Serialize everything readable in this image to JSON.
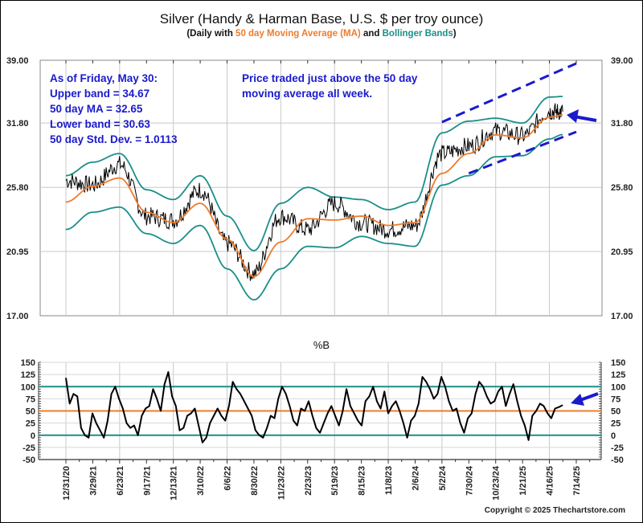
{
  "chart_data": [
    {
      "type": "line",
      "title": "Silver (Handy & Harman Base, U.S. $ per troy ounce)",
      "subtitle": {
        "prefix": "(Daily with ",
        "ma_text": "50 day Moving Average (MA)",
        "middle": " and ",
        "bb_text": "Bollinger Bands",
        "suffix": ")"
      },
      "yscale": "log",
      "ylim": [
        17.0,
        39.0
      ],
      "yticks": [
        "39.00",
        "31.80",
        "25.80",
        "20.95",
        "17.00"
      ],
      "ytick_values": [
        39.0,
        31.8,
        25.8,
        20.95,
        17.0
      ],
      "xlabel": "",
      "ylabel": "",
      "grid": true,
      "colors": {
        "price": "#000000",
        "ma": "#f07b2a",
        "bands": "#1b8f8a",
        "annotation": "#1a1acc"
      },
      "x_dates": [
        "12/31/20",
        "3/29/21",
        "6/23/21",
        "9/17/21",
        "12/13/21",
        "3/10/22",
        "6/6/22",
        "8/30/22",
        "11/23/22",
        "2/23/23",
        "5/19/23",
        "8/15/23",
        "11/8/23",
        "2/6/24",
        "5/2/24",
        "7/30/24",
        "10/23/24",
        "1/21/25",
        "4/16/25",
        "5/30/25"
      ],
      "series": [
        {
          "name": "Price",
          "values": [
            26.4,
            26.0,
            27.8,
            23.5,
            23.2,
            25.6,
            21.5,
            19.5,
            23.5,
            22.5,
            24.5,
            23.0,
            22.5,
            22.8,
            28.8,
            29.5,
            31.0,
            30.5,
            33.0,
            33.0
          ]
        },
        {
          "name": "50 day MA",
          "values": [
            24.6,
            25.9,
            26.6,
            23.8,
            23.0,
            24.5,
            21.8,
            19.3,
            21.6,
            23.3,
            23.2,
            23.5,
            22.8,
            23.0,
            27.0,
            28.8,
            30.6,
            30.3,
            32.4,
            32.65
          ]
        },
        {
          "name": "Upper band",
          "values": [
            26.8,
            28.0,
            28.8,
            25.6,
            24.8,
            26.8,
            23.5,
            21.0,
            24.5,
            25.8,
            25.0,
            24.8,
            24.0,
            24.6,
            30.8,
            32.0,
            32.3,
            31.8,
            34.6,
            34.67
          ]
        },
        {
          "name": "Lower band",
          "values": [
            22.5,
            23.8,
            24.2,
            22.2,
            21.5,
            22.8,
            19.8,
            17.9,
            19.8,
            21.3,
            21.2,
            22.0,
            21.5,
            21.3,
            26.0,
            26.8,
            28.5,
            28.6,
            30.2,
            30.63
          ]
        }
      ],
      "trend_channel": {
        "upper": [
          [
            "5/2/24",
            31.9
          ],
          [
            "7/14/25",
            38.6
          ]
        ],
        "lower": [
          [
            "7/30/24",
            27.0
          ],
          [
            "7/14/25",
            30.9
          ]
        ]
      },
      "annotations": {
        "stats_lines": [
          "As of Friday, May 30:",
          "Upper band = 34.67",
          "50 day MA = 32.65",
          "Lower band = 30.63",
          "50 day Std. Dev. = 1.0113"
        ],
        "comment_lines": [
          "Price traded just above the 50 day",
          "moving average all week."
        ]
      }
    },
    {
      "type": "line",
      "title": "%B",
      "ylim": [
        -50,
        150
      ],
      "yticks": [
        "150",
        "125",
        "100",
        "75",
        "50",
        "25",
        "0",
        "-25",
        "-50"
      ],
      "ytick_values": [
        150,
        125,
        100,
        75,
        50,
        25,
        0,
        -25,
        -50
      ],
      "reference_lines": [
        {
          "value": 100,
          "color": "#1b8f8a"
        },
        {
          "value": 50,
          "color": "#f07b2a"
        },
        {
          "value": 0,
          "color": "#1b8f8a"
        }
      ],
      "grid": true,
      "x_tick_labels": [
        "12/31/20",
        "3/29/21",
        "6/23/21",
        "9/17/21",
        "12/13/21",
        "3/10/22",
        "6/6/22",
        "8/30/22",
        "11/23/22",
        "2/23/23",
        "5/19/23",
        "8/15/23",
        "11/8/23",
        "2/6/24",
        "5/2/24",
        "7/30/24",
        "10/23/24",
        "1/21/25",
        "4/16/25",
        "7/14/25"
      ],
      "series": [
        {
          "name": "%B",
          "values": [
            118,
            65,
            85,
            80,
            15,
            0,
            -5,
            45,
            25,
            10,
            -5,
            30,
            85,
            100,
            75,
            55,
            25,
            15,
            20,
            0,
            40,
            55,
            60,
            95,
            75,
            50,
            105,
            130,
            80,
            60,
            10,
            15,
            40,
            45,
            55,
            20,
            -15,
            -5,
            25,
            40,
            55,
            40,
            30,
            60,
            110,
            95,
            85,
            70,
            55,
            40,
            10,
            0,
            -5,
            15,
            40,
            35,
            75,
            100,
            85,
            60,
            30,
            20,
            55,
            50,
            70,
            40,
            15,
            5,
            25,
            45,
            60,
            40,
            20,
            50,
            95,
            60,
            45,
            30,
            20,
            70,
            80,
            100,
            70,
            55,
            90,
            45,
            60,
            70,
            50,
            25,
            -5,
            30,
            40,
            65,
            120,
            110,
            95,
            75,
            85,
            120,
            100,
            70,
            50,
            55,
            25,
            5,
            35,
            45,
            85,
            110,
            100,
            80,
            65,
            70,
            90,
            100,
            60,
            85,
            105,
            70,
            40,
            20,
            -10,
            40,
            50,
            65,
            60,
            45,
            35,
            55,
            58,
            62
          ]
        }
      ]
    }
  ],
  "footer": {
    "copyright": "Copyright © 2025 Thechartstore.com"
  }
}
